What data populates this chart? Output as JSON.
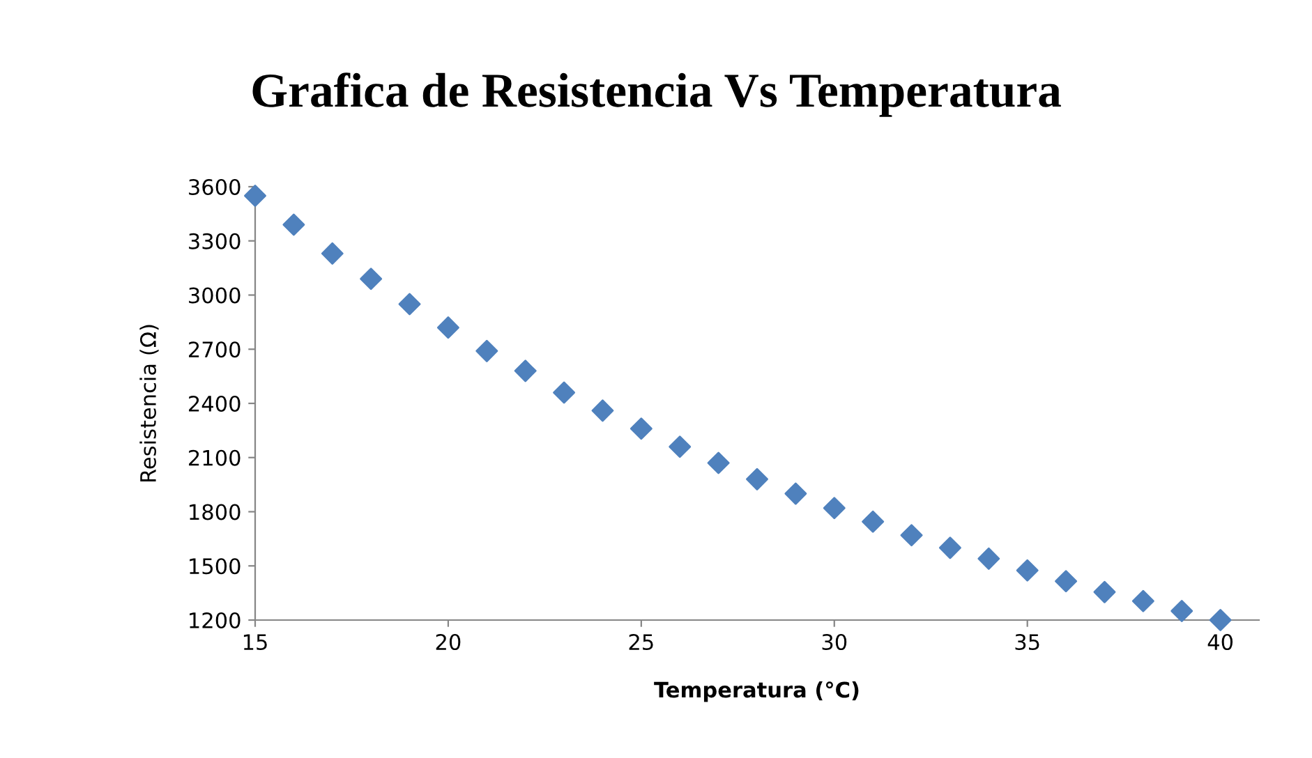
{
  "chart_data": {
    "type": "scatter",
    "title": "Grafica de Resistencia Vs Temperatura",
    "xlabel": "Temperatura (°C)",
    "ylabel": "Resistencia (Ω)",
    "x": [
      15,
      16,
      17,
      18,
      19,
      20,
      21,
      22,
      23,
      24,
      25,
      26,
      27,
      28,
      29,
      30,
      31,
      32,
      33,
      34,
      35,
      36,
      37,
      38,
      39,
      40
    ],
    "series": [
      {
        "color": "#4f81bd",
        "values": [
          3550,
          3390,
          3230,
          3090,
          2950,
          2820,
          2690,
          2580,
          2460,
          2360,
          2260,
          2160,
          2070,
          1980,
          1900,
          1820,
          1745,
          1670,
          1600,
          1540,
          1475,
          1415,
          1355,
          1305,
          1250,
          1200
        ]
      }
    ],
    "xlim": [
      15,
      41
    ],
    "xticks": [
      15,
      20,
      25,
      30,
      35,
      40
    ],
    "ylim": [
      1200,
      3600
    ],
    "yticks": [
      1200,
      1500,
      1800,
      2100,
      2400,
      2700,
      3000,
      3300,
      3600
    ],
    "grid": false,
    "legend": false,
    "marker": "diamond"
  }
}
